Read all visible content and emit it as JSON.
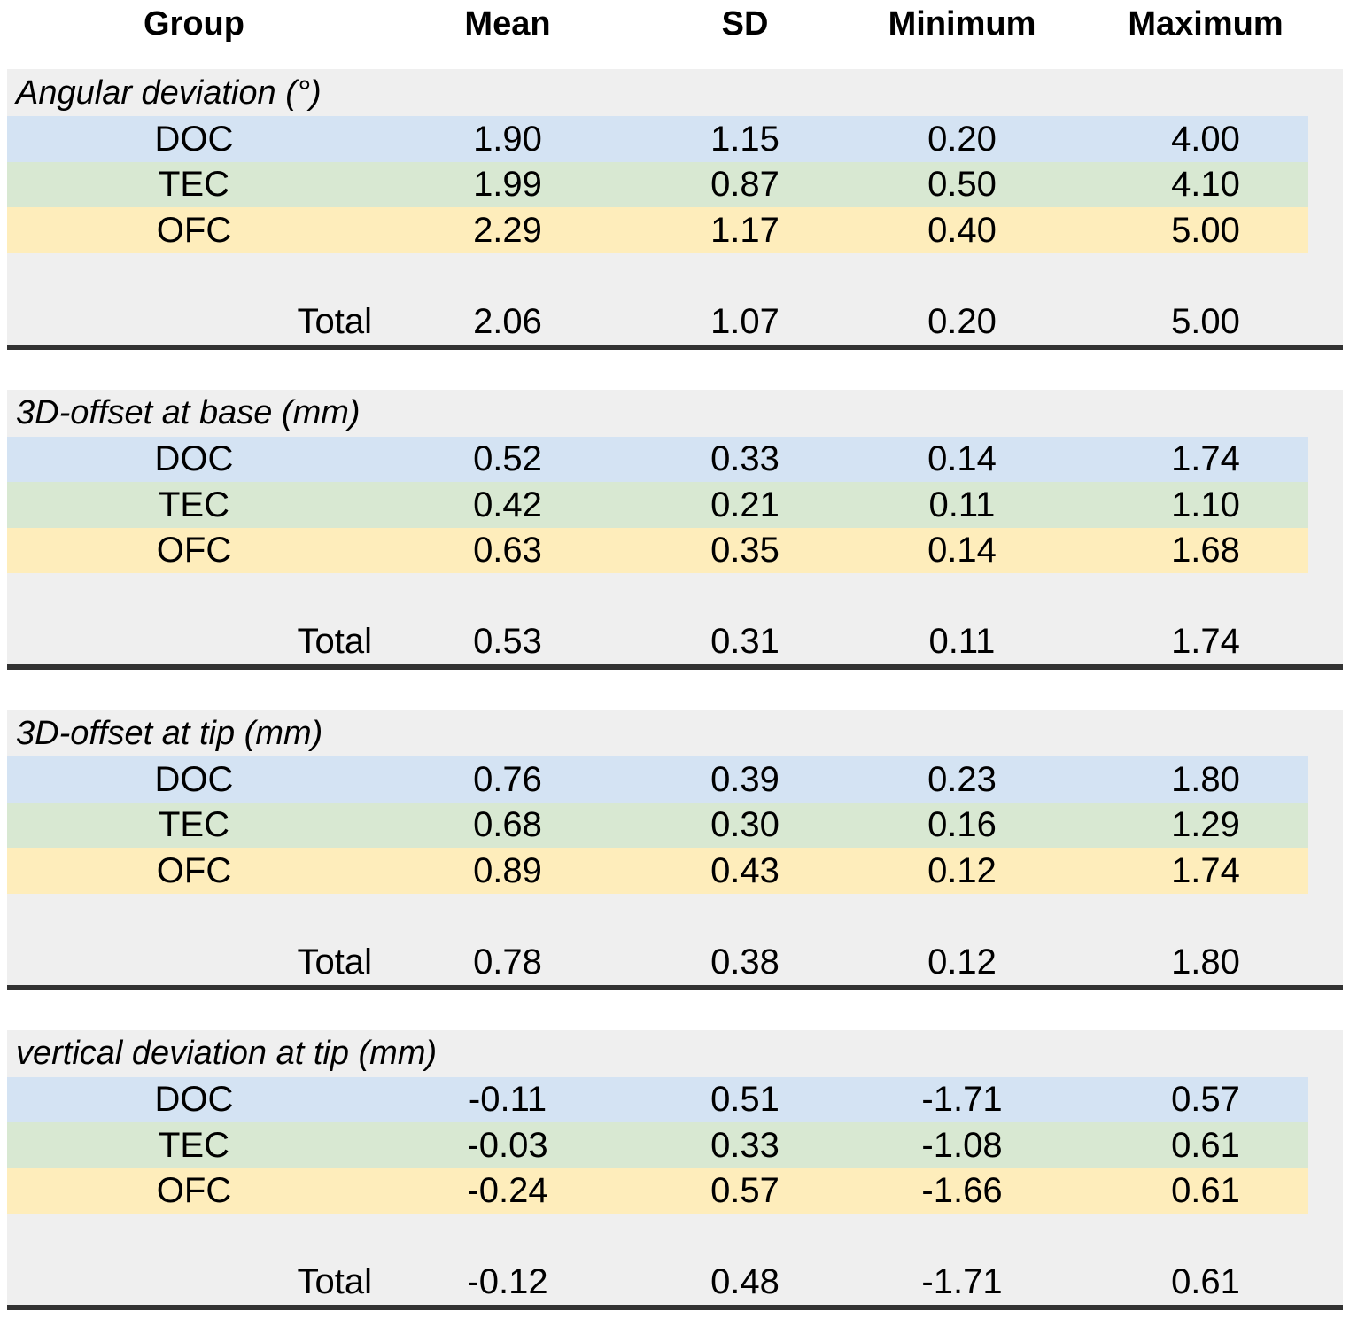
{
  "table": {
    "columns": [
      "Group",
      "Mean",
      "SD",
      "Minimum",
      "Maximum"
    ],
    "sections": [
      {
        "title": "Angular deviation (°)",
        "rows": [
          {
            "group": "DOC",
            "mean": "1.90",
            "sd": "1.15",
            "min": "0.20",
            "max": "4.00"
          },
          {
            "group": "TEC",
            "mean": "1.99",
            "sd": "0.87",
            "min": "0.50",
            "max": "4.10"
          },
          {
            "group": "OFC",
            "mean": "2.29",
            "sd": "1.17",
            "min": "0.40",
            "max": "5.00"
          }
        ],
        "total": {
          "label": "Total",
          "mean": "2.06",
          "sd": "1.07",
          "min": "0.20",
          "max": "5.00"
        }
      },
      {
        "title": "3D-offset at base (mm)",
        "rows": [
          {
            "group": "DOC",
            "mean": "0.52",
            "sd": "0.33",
            "min": "0.14",
            "max": "1.74"
          },
          {
            "group": "TEC",
            "mean": "0.42",
            "sd": "0.21",
            "min": "0.11",
            "max": "1.10"
          },
          {
            "group": "OFC",
            "mean": "0.63",
            "sd": "0.35",
            "min": "0.14",
            "max": "1.68"
          }
        ],
        "total": {
          "label": "Total",
          "mean": "0.53",
          "sd": "0.31",
          "min": "0.11",
          "max": "1.74"
        }
      },
      {
        "title": "3D-offset at tip (mm)",
        "rows": [
          {
            "group": "DOC",
            "mean": "0.76",
            "sd": "0.39",
            "min": "0.23",
            "max": "1.80"
          },
          {
            "group": "TEC",
            "mean": "0.68",
            "sd": "0.30",
            "min": "0.16",
            "max": "1.29"
          },
          {
            "group": "OFC",
            "mean": "0.89",
            "sd": "0.43",
            "min": "0.12",
            "max": "1.74"
          }
        ],
        "total": {
          "label": "Total",
          "mean": "0.78",
          "sd": "0.38",
          "min": "0.12",
          "max": "1.80"
        }
      },
      {
        "title": "vertical deviation at tip (mm)",
        "rows": [
          {
            "group": "DOC",
            "mean": "-0.11",
            "sd": "0.51",
            "min": "-1.71",
            "max": "0.57"
          },
          {
            "group": "TEC",
            "mean": "-0.03",
            "sd": "0.33",
            "min": "-1.08",
            "max": "0.61"
          },
          {
            "group": "OFC",
            "mean": "-0.24",
            "sd": "0.57",
            "min": "-1.66",
            "max": "0.61"
          }
        ],
        "total": {
          "label": "Total",
          "mean": "-0.12",
          "sd": "0.48",
          "min": "-1.71",
          "max": "0.61"
        }
      }
    ]
  },
  "colors": {
    "doc_row": "#D4E3F3",
    "tec_row": "#D8E8D2",
    "ofc_row": "#FEEDBB",
    "section_background": "#EFEFEF",
    "bottom_rule": "#323232",
    "text": "#000000"
  }
}
